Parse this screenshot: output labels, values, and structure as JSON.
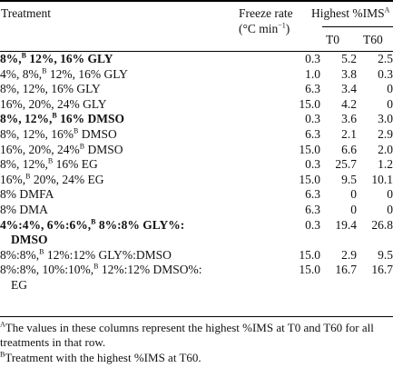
{
  "header": {
    "treatment": "Treatment",
    "freeze_rate_line1": "Freeze rate",
    "freeze_rate_line2": "(°C min",
    "freeze_rate_exp": "−1",
    "freeze_rate_close": ")",
    "highest": "Highest %IMS",
    "highest_sup": "A",
    "t0": "T0",
    "t60": "T60"
  },
  "rows": [
    {
      "bold": true,
      "cells": [
        [
          "8%,",
          ""
        ],
        [
          "B",
          "sup"
        ],
        [
          " 12%, 16% GLY",
          ""
        ]
      ],
      "freeze": "0.3",
      "t0": "5.2",
      "t60": "2.5"
    },
    {
      "bold": false,
      "cells": [
        [
          "4%, 8%,",
          ""
        ],
        [
          "B",
          "sup"
        ],
        [
          " 12%, 16% GLY",
          ""
        ]
      ],
      "freeze": "1.0",
      "t0": "3.8",
      "t60": "0.3"
    },
    {
      "bold": false,
      "cells": [
        [
          "8%, 12%, 16% GLY",
          ""
        ]
      ],
      "freeze": "6.3",
      "t0": "3.4",
      "t60": "0"
    },
    {
      "bold": false,
      "cells": [
        [
          "16%, 20%, 24% GLY",
          ""
        ]
      ],
      "freeze": "15.0",
      "t0": "4.2",
      "t60": "0"
    },
    {
      "bold": true,
      "cells": [
        [
          "8%, 12%,",
          ""
        ],
        [
          "B",
          "sup"
        ],
        [
          " 16% DMSO",
          ""
        ]
      ],
      "freeze": "0.3",
      "t0": "3.6",
      "t60": "3.0"
    },
    {
      "bold": false,
      "cells": [
        [
          "8%, 12%, 16%",
          ""
        ],
        [
          "B",
          "sup"
        ],
        [
          " DMSO",
          ""
        ]
      ],
      "freeze": "6.3",
      "t0": "2.1",
      "t60": "2.9"
    },
    {
      "bold": false,
      "cells": [
        [
          "16%, 20%, 24%",
          ""
        ],
        [
          "B",
          "sup"
        ],
        [
          " DMSO",
          ""
        ]
      ],
      "freeze": "15.0",
      "t0": "6.6",
      "t60": "2.0"
    },
    {
      "bold": false,
      "cells": [
        [
          "8%, 12%,",
          ""
        ],
        [
          "B",
          "sup"
        ],
        [
          " 16% EG",
          ""
        ]
      ],
      "freeze": "0.3",
      "t0": "25.7",
      "t60": "1.2"
    },
    {
      "bold": false,
      "cells": [
        [
          "16%,",
          ""
        ],
        [
          "B",
          "sup"
        ],
        [
          " 20%, 24% EG",
          ""
        ]
      ],
      "freeze": "15.0",
      "t0": "9.5",
      "t60": "10.1"
    },
    {
      "bold": false,
      "cells": [
        [
          "8% DMFA",
          ""
        ]
      ],
      "freeze": "6.3",
      "t0": "0",
      "t60": "0"
    },
    {
      "bold": false,
      "cells": [
        [
          "8% DMA",
          ""
        ]
      ],
      "freeze": "6.3",
      "t0": "0",
      "t60": "0"
    },
    {
      "bold": true,
      "cells": [
        [
          "4%:4%, 6%:6%,",
          ""
        ],
        [
          "B",
          "sup"
        ],
        [
          " 8%:8% GLY%:",
          ""
        ]
      ],
      "freeze": "0.3",
      "t0": "19.4",
      "t60": "26.8"
    },
    {
      "bold": true,
      "indent": true,
      "cells": [
        [
          "DMSO",
          ""
        ]
      ],
      "freeze": "",
      "t0": "",
      "t60": ""
    },
    {
      "bold": false,
      "cells": [
        [
          "8%:8%,",
          ""
        ],
        [
          "B",
          "sup"
        ],
        [
          " 12%:12% GLY%:DMSO",
          ""
        ]
      ],
      "freeze": "15.0",
      "t0": "2.9",
      "t60": "9.5"
    },
    {
      "bold": false,
      "cells": [
        [
          "8%:8%, 10%:10%,",
          ""
        ],
        [
          "B",
          "sup"
        ],
        [
          " 12%:12% DMSO%:",
          ""
        ]
      ],
      "freeze": "15.0",
      "t0": "16.7",
      "t60": "16.7"
    },
    {
      "bold": false,
      "indent": true,
      "cells": [
        [
          "EG",
          ""
        ]
      ],
      "freeze": "",
      "t0": "",
      "t60": ""
    }
  ],
  "footnotes": {
    "a_mark": "A",
    "a_text": "The values in these columns represent the highest %IMS at T0 and T60 for all treatments in that row.",
    "b_mark": "B",
    "b_text": "Treatment with the highest %IMS at T60."
  }
}
